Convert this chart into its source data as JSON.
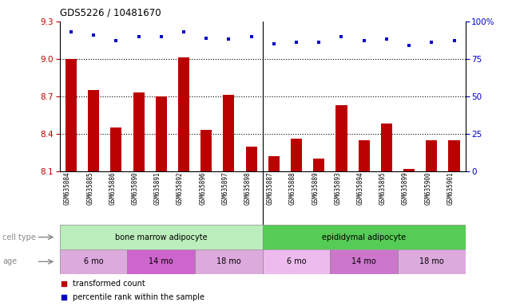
{
  "title": "GDS5226 / 10481670",
  "samples": [
    "GSM635884",
    "GSM635885",
    "GSM635886",
    "GSM635890",
    "GSM635891",
    "GSM635892",
    "GSM635896",
    "GSM635897",
    "GSM635898",
    "GSM635887",
    "GSM635888",
    "GSM635889",
    "GSM635893",
    "GSM635894",
    "GSM635895",
    "GSM635899",
    "GSM635900",
    "GSM635901"
  ],
  "transformed_counts": [
    9.0,
    8.75,
    8.45,
    8.73,
    8.7,
    9.01,
    8.43,
    8.71,
    8.3,
    8.22,
    8.36,
    8.2,
    8.63,
    8.35,
    8.48,
    8.12,
    8.35,
    8.35
  ],
  "percentile_ranks": [
    93,
    91,
    87,
    90,
    90,
    93,
    89,
    88,
    90,
    85,
    86,
    86,
    90,
    87,
    88,
    84,
    86,
    87
  ],
  "y_min": 8.1,
  "y_max": 9.3,
  "y_ticks": [
    8.1,
    8.4,
    8.7,
    9.0,
    9.3
  ],
  "right_y_ticks": [
    0,
    25,
    50,
    75,
    100
  ],
  "bar_color": "#bb0000",
  "dot_color": "#0000cc",
  "bar_width": 0.5,
  "cell_type_groups": [
    {
      "label": "bone marrow adipocyte",
      "start": 0,
      "end": 9,
      "color": "#bbeebb"
    },
    {
      "label": "epididymal adipocyte",
      "start": 9,
      "end": 18,
      "color": "#55cc55"
    }
  ],
  "age_groups": [
    {
      "label": "6 mo",
      "start": 0,
      "end": 3,
      "color": "#ddaadd"
    },
    {
      "label": "14 mo",
      "start": 3,
      "end": 6,
      "color": "#cc66cc"
    },
    {
      "label": "18 mo",
      "start": 6,
      "end": 9,
      "color": "#ddaadd"
    },
    {
      "label": "6 mo",
      "start": 9,
      "end": 12,
      "color": "#eebbee"
    },
    {
      "label": "14 mo",
      "start": 12,
      "end": 15,
      "color": "#cc77cc"
    },
    {
      "label": "18 mo",
      "start": 15,
      "end": 18,
      "color": "#ddaadd"
    }
  ],
  "legend_items": [
    {
      "label": "transformed count",
      "color": "#bb0000",
      "marker": "s"
    },
    {
      "label": "percentile rank within the sample",
      "color": "#0000cc",
      "marker": "s"
    }
  ],
  "cell_type_label": "cell type",
  "age_label": "age",
  "separator_idx": 8.5
}
